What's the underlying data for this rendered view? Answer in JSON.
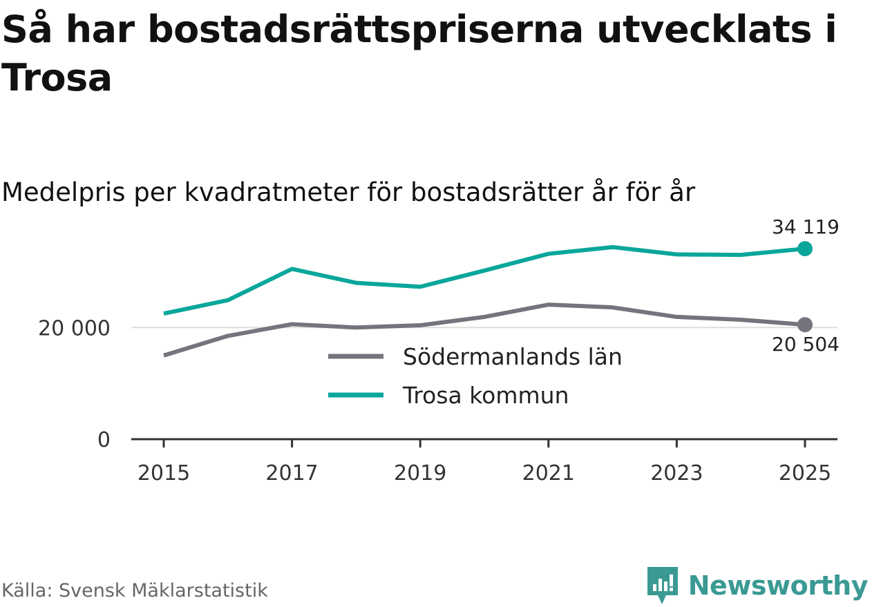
{
  "title": "Så har bostadsrättspriserna utvecklats i Trosa",
  "subtitle": "Medelpris per kvadratmeter för bostadsrätter år för år",
  "source": "Källa: Svensk Mäklarstatistik",
  "brand": "Newsworthy",
  "colors": {
    "lan": "#75737b",
    "kommun": "#0aa69b",
    "grid": "#dddddd",
    "axis": "#333333",
    "brand": "#3a9a93"
  },
  "chart_data": {
    "type": "line",
    "title": "Så har bostadsrättspriserna utvecklats i Trosa",
    "subtitle": "Medelpris per kvadratmeter för bostadsrätter år för år",
    "x": [
      2015,
      2016,
      2017,
      2018,
      2019,
      2020,
      2021,
      2022,
      2023,
      2024,
      2025
    ],
    "xticks": [
      "2015",
      "2017",
      "2019",
      "2021",
      "2023",
      "2025"
    ],
    "ylim": [
      0,
      35000
    ],
    "yticks": [
      0,
      20000
    ],
    "ytick_labels": [
      "0",
      "20 000"
    ],
    "grid": "horizontal",
    "legend": "center",
    "series": [
      {
        "name": "Södermanlands län",
        "color": "#75737b",
        "values": [
          15000,
          18500,
          20600,
          20000,
          20400,
          21900,
          24100,
          23600,
          21900,
          21400,
          20504
        ],
        "end_label": "20 504"
      },
      {
        "name": "Trosa kommun",
        "color": "#0aa69b",
        "values": [
          22500,
          24900,
          30500,
          28000,
          27300,
          30200,
          33200,
          34400,
          33100,
          33000,
          34119
        ],
        "end_label": "34 119"
      }
    ]
  }
}
